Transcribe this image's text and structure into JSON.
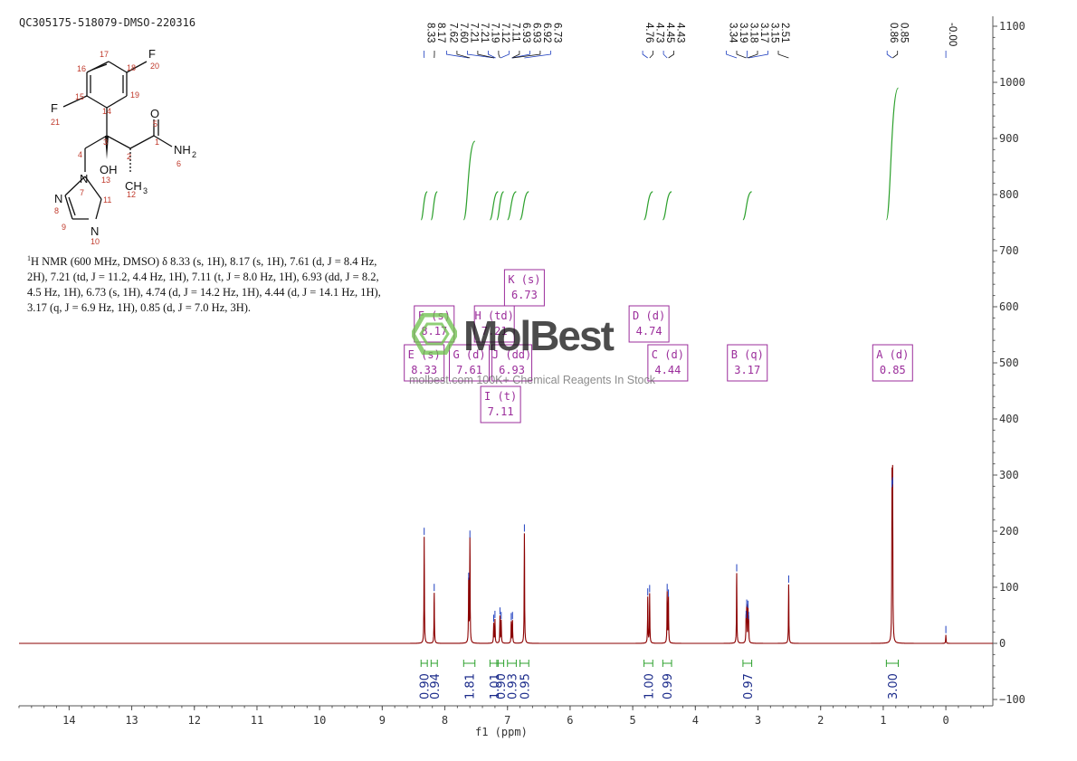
{
  "sample_id": "QC305175-518079-DMSO-220316",
  "nmr_description": {
    "nucleus_sup": "1",
    "text": "H NMR (600 MHz, DMSO) δ 8.33 (s, 1H), 8.17 (s, 1H), 7.61 (d, J = 8.4 Hz, 2H), 7.21 (td, J = 11.2, 4.4 Hz, 1H), 7.11 (t, J = 8.0 Hz, 1H), 6.93 (dd, J = 8.2, 4.5 Hz, 1H), 6.73 (s, 1H), 4.74 (d, J = 14.2 Hz, 1H), 4.44 (d, J = 14.1 Hz, 1H), 3.17 (q, J = 6.9 Hz, 1H), 0.85 (d, J = 7.0 Hz, 3H)."
  },
  "watermark": {
    "logo": "MolBest",
    "tagline": "molbest.com  100K+ Chemical Reagents In Stock"
  },
  "molecule": {
    "atoms": [
      "F",
      "F",
      "O",
      "NH",
      "2",
      "OH",
      "CH",
      "3",
      "N",
      "N",
      "N"
    ],
    "atom_numbers": [
      "1",
      "2",
      "3",
      "4",
      "5",
      "6",
      "7",
      "8",
      "9",
      "10",
      "11",
      "12",
      "13",
      "14",
      "15",
      "16",
      "17",
      "18",
      "19",
      "20",
      "21"
    ]
  },
  "chart_data": {
    "type": "line",
    "title": "",
    "xlabel": "f1 (ppm)",
    "ylabel": "",
    "xlim": [
      14.8,
      -0.75
    ],
    "ylim": [
      -100,
      1100
    ],
    "x_ticks": [
      14,
      13,
      12,
      11,
      10,
      9,
      8,
      7,
      6,
      5,
      4,
      3,
      2,
      1,
      0
    ],
    "y_ticks": [
      -100,
      0,
      100,
      200,
      300,
      400,
      500,
      600,
      700,
      800,
      900,
      1000,
      1100
    ],
    "grid": false,
    "peaks": [
      {
        "ppm": 8.33,
        "height": 190
      },
      {
        "ppm": 8.17,
        "height": 90
      },
      {
        "ppm": 7.62,
        "height": 110
      },
      {
        "ppm": 7.6,
        "height": 185
      },
      {
        "ppm": 7.22,
        "height": 35
      },
      {
        "ppm": 7.2,
        "height": 42
      },
      {
        "ppm": 7.12,
        "height": 48
      },
      {
        "ppm": 7.1,
        "height": 40
      },
      {
        "ppm": 6.94,
        "height": 38
      },
      {
        "ppm": 6.92,
        "height": 40
      },
      {
        "ppm": 6.73,
        "height": 196
      },
      {
        "ppm": 4.76,
        "height": 82
      },
      {
        "ppm": 4.73,
        "height": 88
      },
      {
        "ppm": 4.45,
        "height": 90
      },
      {
        "ppm": 4.43,
        "height": 80
      },
      {
        "ppm": 3.34,
        "height": 125
      },
      {
        "ppm": 3.19,
        "height": 42
      },
      {
        "ppm": 3.18,
        "height": 62
      },
      {
        "ppm": 3.16,
        "height": 60
      },
      {
        "ppm": 3.15,
        "height": 40
      },
      {
        "ppm": 2.51,
        "height": 105
      },
      {
        "ppm": 0.86,
        "height": 275
      },
      {
        "ppm": 0.85,
        "height": 280
      },
      {
        "ppm": 0.0,
        "height": 15
      }
    ],
    "peak_labels": [
      "8.33",
      "8.17",
      "7.62",
      "7.60",
      "7.21",
      "7.21",
      "7.19",
      "7.12",
      "7.11",
      "6.93",
      "6.93",
      "6.92",
      "6.73",
      "4.76",
      "4.73",
      "4.45",
      "4.43",
      "3.34",
      "3.19",
      "3.18",
      "3.17",
      "3.15",
      "2.51",
      "0.86",
      "0.85",
      "-0.00"
    ],
    "peak_label_groups": [
      {
        "labels": [
          "8.33",
          "8.17"
        ],
        "ppm": [
          8.33,
          8.17
        ]
      },
      {
        "labels": [
          "7.62",
          "7.60",
          "7.21",
          "7.21",
          "7.19",
          "7.12",
          "7.11",
          "6.93",
          "6.93",
          "6.92",
          "6.73"
        ],
        "ppm": [
          7.62,
          7.6,
          7.21,
          7.21,
          7.19,
          7.12,
          7.11,
          6.93,
          6.93,
          6.92,
          6.73
        ]
      },
      {
        "labels": [
          "4.76",
          "4.73",
          "4.45",
          "4.43"
        ],
        "ppm": [
          4.76,
          4.73,
          4.45,
          4.43
        ]
      },
      {
        "labels": [
          "3.34",
          "3.19",
          "3.18",
          "3.17",
          "3.15",
          "2.51"
        ],
        "ppm": [
          3.34,
          3.19,
          3.18,
          3.17,
          3.15,
          2.51
        ]
      },
      {
        "labels": [
          "0.86",
          "0.85"
        ],
        "ppm": [
          0.86,
          0.85
        ]
      },
      {
        "labels": [
          "-0.00"
        ],
        "ppm": [
          0.0
        ]
      }
    ],
    "integral_curves": [
      {
        "from": 8.38,
        "to": 8.28,
        "base": 755,
        "top": 805
      },
      {
        "from": 8.22,
        "to": 8.12,
        "base": 755,
        "top": 805
      },
      {
        "from": 7.7,
        "to": 7.52,
        "base": 755,
        "top": 895
      },
      {
        "from": 7.28,
        "to": 7.15,
        "base": 755,
        "top": 805
      },
      {
        "from": 7.17,
        "to": 7.06,
        "base": 755,
        "top": 805
      },
      {
        "from": 7.0,
        "to": 6.86,
        "base": 755,
        "top": 805
      },
      {
        "from": 6.8,
        "to": 6.66,
        "base": 755,
        "top": 805
      },
      {
        "from": 4.82,
        "to": 4.68,
        "base": 755,
        "top": 805
      },
      {
        "from": 4.52,
        "to": 4.38,
        "base": 755,
        "top": 805
      },
      {
        "from": 3.24,
        "to": 3.1,
        "base": 755,
        "top": 805
      },
      {
        "from": 0.95,
        "to": 0.76,
        "base": 755,
        "top": 990
      }
    ],
    "multiplets": [
      {
        "name": "K (s)",
        "shift": "6.73",
        "box_ppm": 6.73,
        "row": 0
      },
      {
        "name": "F (s)",
        "shift": "8.17",
        "box_ppm": 8.17,
        "row": 1
      },
      {
        "name": "H (td)",
        "shift": "7.21",
        "box_ppm": 7.21,
        "row": 1
      },
      {
        "name": "D (d)",
        "shift": "4.74",
        "box_ppm": 4.74,
        "row": 1
      },
      {
        "name": "E (s)",
        "shift": "8.33",
        "box_ppm": 8.33,
        "row": 2
      },
      {
        "name": "G (d)",
        "shift": "7.61",
        "box_ppm": 7.61,
        "row": 2
      },
      {
        "name": "J (dd)",
        "shift": "6.93",
        "box_ppm": 6.93,
        "row": 2
      },
      {
        "name": "C (d)",
        "shift": "4.44",
        "box_ppm": 4.44,
        "row": 2
      },
      {
        "name": "B (q)",
        "shift": "3.17",
        "box_ppm": 3.17,
        "row": 2
      },
      {
        "name": "A (d)",
        "shift": "0.85",
        "box_ppm": 0.85,
        "row": 2
      },
      {
        "name": "I (t)",
        "shift": "7.11",
        "box_ppm": 7.11,
        "row": 3
      }
    ],
    "integrations": [
      {
        "value": "0.90",
        "from": 8.38,
        "to": 8.28
      },
      {
        "value": "0.94",
        "from": 8.22,
        "to": 8.12
      },
      {
        "value": "1.81",
        "from": 7.7,
        "to": 7.52
      },
      {
        "value": "1.01",
        "from": 7.28,
        "to": 7.15
      },
      {
        "value": "0.90",
        "from": 7.17,
        "to": 7.06
      },
      {
        "value": "0.93",
        "from": 7.0,
        "to": 6.86
      },
      {
        "value": "0.95",
        "from": 6.8,
        "to": 6.66
      },
      {
        "value": "1.00",
        "from": 4.82,
        "to": 4.68
      },
      {
        "value": "0.99",
        "from": 4.52,
        "to": 4.38
      },
      {
        "value": "0.97",
        "from": 3.24,
        "to": 3.1
      },
      {
        "value": "3.00",
        "from": 0.95,
        "to": 0.76
      }
    ],
    "colors": {
      "spectrum": "#8b0000",
      "integral": "#2ca02c",
      "peak_tick": "#1f3fbf",
      "multiplet_box": "#9b2d9b",
      "axis": "#555555",
      "integration_text": "#1a2a8a"
    }
  }
}
